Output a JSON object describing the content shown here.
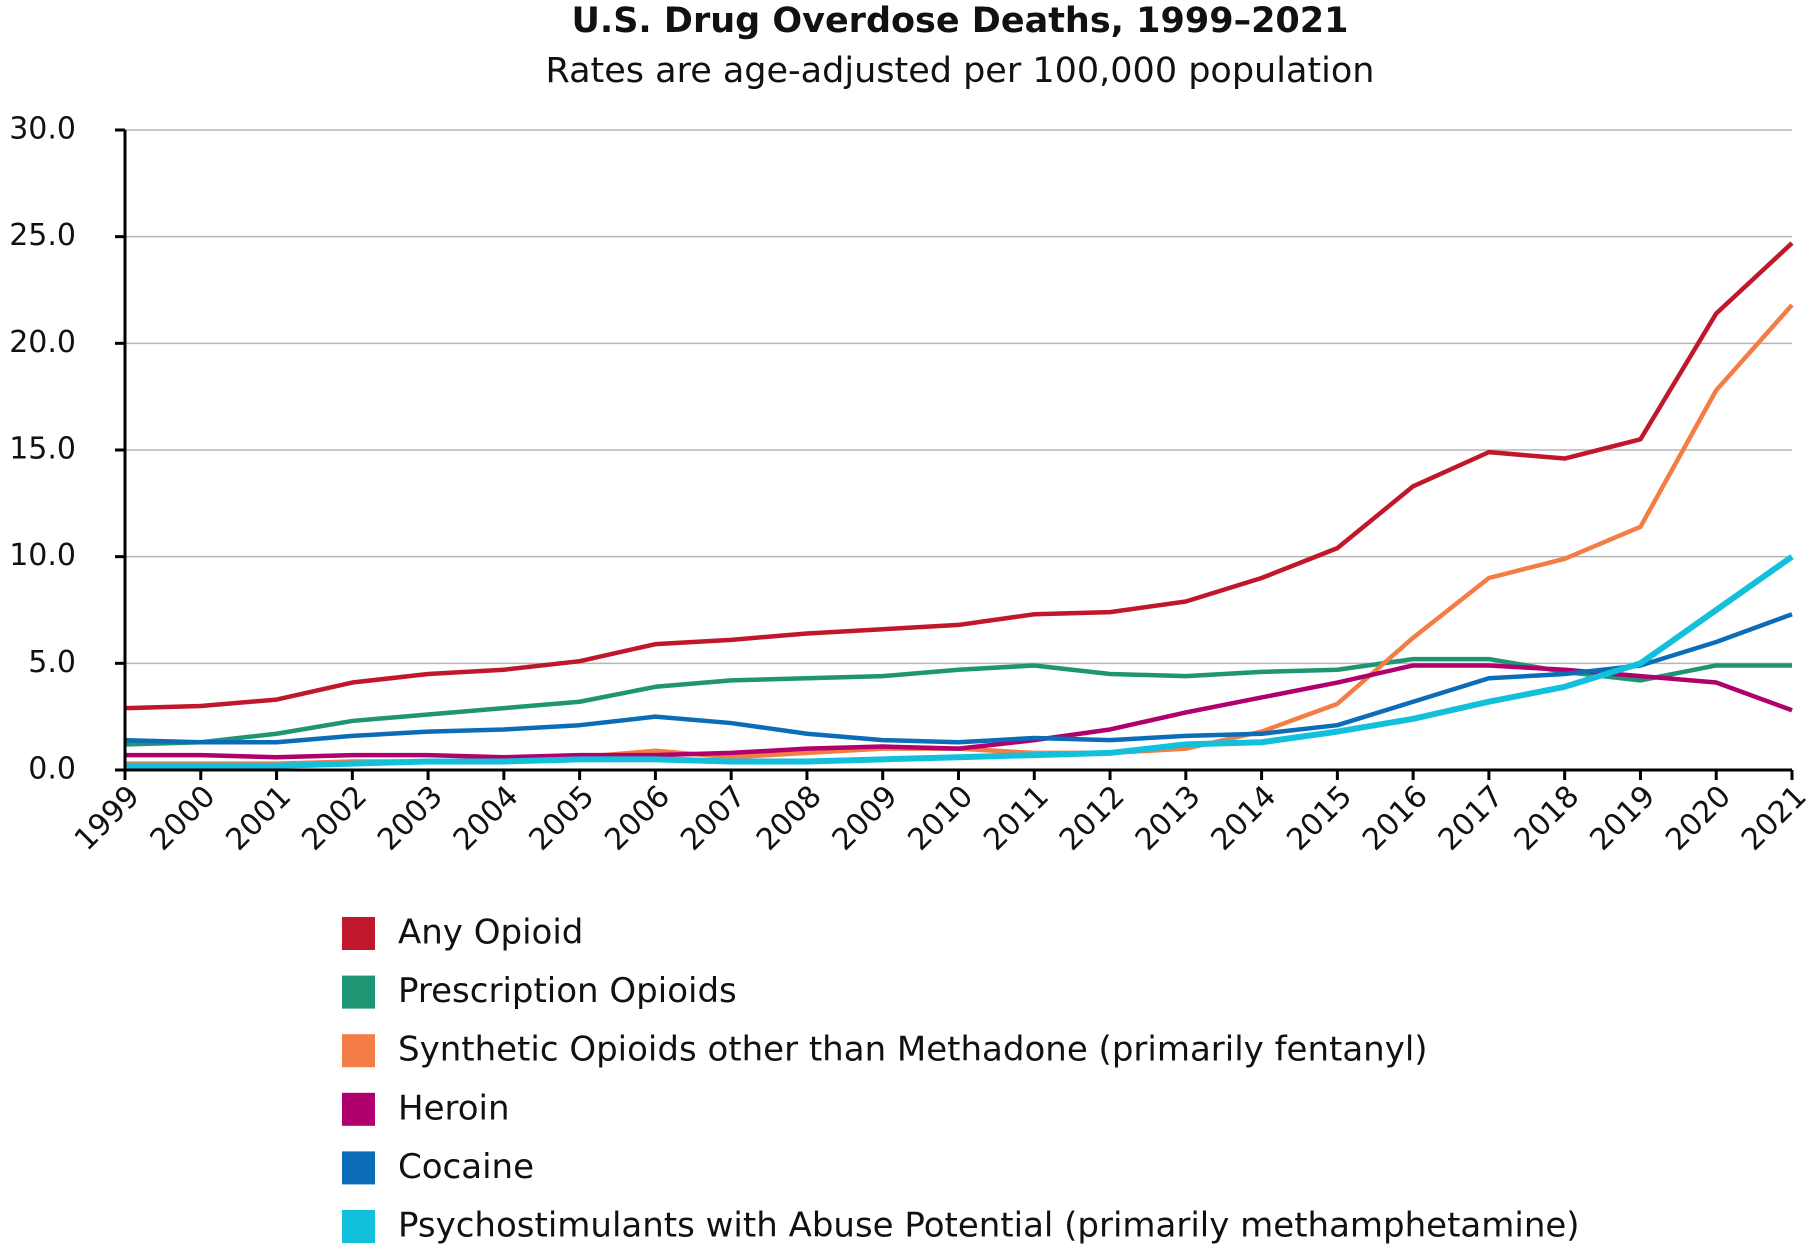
{
  "chart_data": {
    "type": "line",
    "title": "U.S. Drug Overdose Deaths, 1999–2021",
    "subtitle": "Rates are age-adjusted per 100,000 population",
    "categories": [
      "1999",
      "2000",
      "2001",
      "2002",
      "2003",
      "2004",
      "2005",
      "2006",
      "2007",
      "2008",
      "2009",
      "2010",
      "2011",
      "2012",
      "2013",
      "2014",
      "2015",
      "2016",
      "2017",
      "2018",
      "2019",
      "2020",
      "2021"
    ],
    "ylim": [
      0,
      30
    ],
    "yticks": [
      {
        "value": 0,
        "label": "0.0"
      },
      {
        "value": 5,
        "label": "5.0"
      },
      {
        "value": 10,
        "label": "10.0"
      },
      {
        "value": 15,
        "label": "15.0"
      },
      {
        "value": 20,
        "label": "20.0"
      },
      {
        "value": 25,
        "label": "25.0"
      },
      {
        "value": 30,
        "label": "30.0"
      }
    ],
    "grid": true,
    "legend": "bottom",
    "series": [
      {
        "name": "Any Opioid",
        "color": "#c1172a",
        "values": [
          2.9,
          3.0,
          3.3,
          4.1,
          4.5,
          4.7,
          5.1,
          5.9,
          6.1,
          6.4,
          6.6,
          6.8,
          7.3,
          7.4,
          7.9,
          9.0,
          10.4,
          13.3,
          14.9,
          14.6,
          15.5,
          21.4,
          24.7
        ]
      },
      {
        "name": "Prescription Opioids",
        "color": "#1e9673",
        "values": [
          1.2,
          1.3,
          1.7,
          2.3,
          2.6,
          2.9,
          3.2,
          3.9,
          4.2,
          4.3,
          4.4,
          4.7,
          4.9,
          4.5,
          4.4,
          4.6,
          4.7,
          5.2,
          5.2,
          4.6,
          4.2,
          4.9,
          4.9
        ]
      },
      {
        "name": "Synthetic Opioids other than Methadone (primarily fentanyl)",
        "color": "#f47c45",
        "values": [
          0.3,
          0.3,
          0.3,
          0.4,
          0.4,
          0.5,
          0.6,
          0.9,
          0.6,
          0.8,
          1.0,
          1.0,
          0.8,
          0.8,
          1.0,
          1.8,
          3.1,
          6.2,
          9.0,
          9.9,
          11.4,
          17.8,
          21.8
        ]
      },
      {
        "name": "Heroin",
        "color": "#b0006d",
        "values": [
          0.7,
          0.7,
          0.6,
          0.7,
          0.7,
          0.6,
          0.7,
          0.7,
          0.8,
          1.0,
          1.1,
          1.0,
          1.4,
          1.9,
          2.7,
          3.4,
          4.1,
          4.9,
          4.9,
          4.7,
          4.4,
          4.1,
          2.8
        ]
      },
      {
        "name": "Cocaine",
        "color": "#0b6db7",
        "values": [
          1.4,
          1.3,
          1.3,
          1.6,
          1.8,
          1.9,
          2.1,
          2.5,
          2.2,
          1.7,
          1.4,
          1.3,
          1.5,
          1.4,
          1.6,
          1.7,
          2.1,
          3.2,
          4.3,
          4.5,
          4.9,
          6.0,
          7.3
        ]
      },
      {
        "name": "Psychostimulants with Abuse Potential (primarily methamphetamine)",
        "color": "#13c0dc",
        "values": [
          0.2,
          0.2,
          0.2,
          0.3,
          0.4,
          0.4,
          0.5,
          0.5,
          0.4,
          0.4,
          0.5,
          0.6,
          0.7,
          0.8,
          1.2,
          1.3,
          1.8,
          2.4,
          3.2,
          3.9,
          5.0,
          7.5,
          10.0
        ]
      }
    ]
  }
}
